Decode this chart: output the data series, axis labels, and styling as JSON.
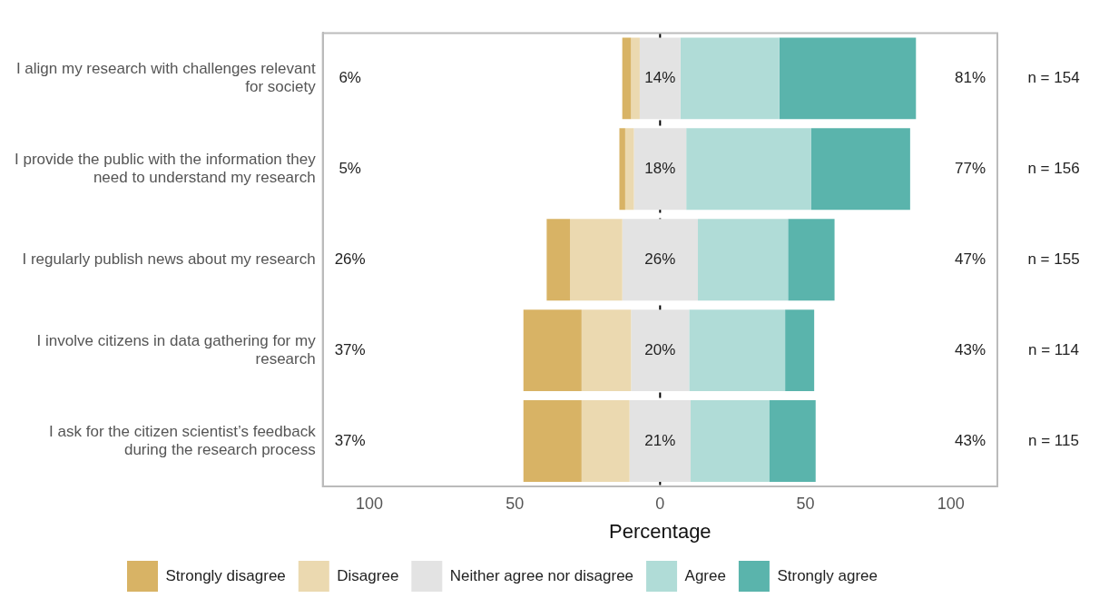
{
  "chart_data": {
    "type": "bar",
    "orientation": "horizontal",
    "xlabel": "Percentage",
    "categories": [
      "I align my research with challenges relevant for society",
      "I provide the public with the information they need to understand my research",
      "I regularly publish news about my research",
      "I involve citizens in data gathering for my research",
      "I ask for the citizen scientist’s feedback during the research process"
    ],
    "series": [
      {
        "name": "Strongly disagree",
        "color": "#d8b365",
        "base": [
          -13,
          -14,
          -39,
          -47,
          -47
        ],
        "values": [
          3,
          2,
          8,
          20,
          20
        ]
      },
      {
        "name": "Disagree",
        "color": "#ebd9b0",
        "base": [
          -10,
          -12,
          -31,
          -27,
          -27
        ],
        "values": [
          3,
          3,
          18,
          17,
          16.5
        ]
      },
      {
        "name": "Neither agree nor disagree",
        "color": "#e3e3e3",
        "base": [
          -7,
          -9,
          -13,
          -10,
          -10.5
        ],
        "values": [
          14,
          18,
          26,
          20,
          21
        ],
        "value_labels": [
          "14%",
          "18%",
          "26%",
          "20%",
          "21%"
        ]
      },
      {
        "name": "Agree",
        "color": "#b0dcd7",
        "base": [
          7,
          9,
          13,
          10,
          10.5
        ],
        "values": [
          34,
          43,
          31,
          33,
          27
        ]
      },
      {
        "name": "Strongly agree",
        "color": "#5ab4ac",
        "base": [
          41,
          52,
          44,
          43,
          37.5
        ],
        "values": [
          47,
          34,
          16,
          10,
          16
        ]
      }
    ],
    "xlim": [
      -116,
      116
    ],
    "xticks": [
      {
        "value": -100,
        "label": "100"
      },
      {
        "value": -50,
        "label": "50"
      },
      0,
      50,
      100
    ],
    "legend": "bottom",
    "ref_lines": [
      {
        "axis": "x",
        "value": 0,
        "color": "#000000",
        "line_style": "dashed"
      }
    ],
    "annotations": [
      "6%",
      "81%",
      "n = 154",
      "5%",
      "77%",
      "n = 156",
      "26%",
      "47%",
      "n = 155",
      "37%",
      "43%",
      "n = 114",
      "37%",
      "43%",
      "n = 115"
    ]
  }
}
